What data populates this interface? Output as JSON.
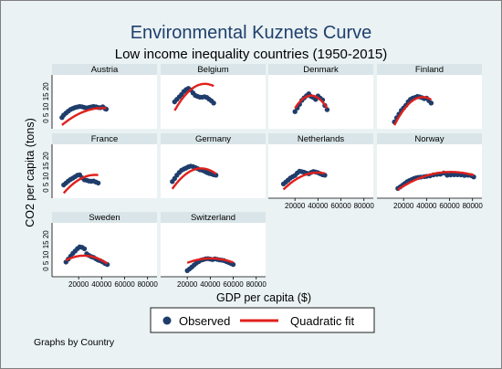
{
  "chart_data": {
    "type": "scatter",
    "title": "Environmental Kuznets Curve",
    "subtitle": "Low income inequality countries (1950-2015)",
    "xlabel": "GDP per capita ($)",
    "ylabel": "CO2 per capita (tons)",
    "note": "Graphs by Country",
    "xlim": [
      0,
      85000
    ],
    "ylim": [
      0,
      22
    ],
    "x_ticks": [
      20000,
      40000,
      60000,
      80000
    ],
    "x_tick_labels": [
      "20000",
      "40000",
      "60000",
      "80000"
    ],
    "y_ticks": [
      5,
      10,
      15,
      20
    ],
    "y_tick_labels": [
      "5",
      "10",
      "15",
      "20"
    ],
    "y_tick_text": "0 5 10 15 20",
    "legend": {
      "placement": "bottom",
      "items": [
        "Observed",
        "Quadratic fit"
      ]
    },
    "colors": {
      "observed": "#1f3d6b",
      "fit": "#e0201c",
      "title": "#1f3f6e",
      "background": "#eaf2f3"
    },
    "panels": [
      {
        "name": "Austria",
        "fit": [
          -5.53e-09,
          0.000453,
          -0.8
        ],
        "observed": [
          [
            5500,
            4.6
          ],
          [
            7000,
            5.6
          ],
          [
            9000,
            6.4
          ],
          [
            11000,
            7.2
          ],
          [
            13000,
            7.9
          ],
          [
            15000,
            8.3
          ],
          [
            17000,
            8.7
          ],
          [
            19000,
            8.9
          ],
          [
            21000,
            9.1
          ],
          [
            23000,
            9.0
          ],
          [
            25000,
            8.7
          ],
          [
            27000,
            8.5
          ],
          [
            29000,
            8.7
          ],
          [
            31000,
            8.9
          ],
          [
            33000,
            9.1
          ],
          [
            35000,
            9.0
          ],
          [
            37000,
            8.7
          ],
          [
            39000,
            8.6
          ],
          [
            41000,
            9.0
          ],
          [
            43000,
            8.2
          ],
          [
            44000,
            8.0
          ]
        ]
      },
      {
        "name": "Belgium",
        "fit": [
          -1.57e-08,
          0.00111,
          -1.27
        ],
        "observed": [
          [
            9000,
            11.0
          ],
          [
            11000,
            12.0
          ],
          [
            13000,
            13.0
          ],
          [
            15000,
            14.0
          ],
          [
            17000,
            15.2
          ],
          [
            19000,
            16.0
          ],
          [
            21000,
            16.5
          ],
          [
            23000,
            15.8
          ],
          [
            25000,
            14.6
          ],
          [
            27000,
            13.6
          ],
          [
            29000,
            13.2
          ],
          [
            31000,
            12.9
          ],
          [
            33000,
            12.9
          ],
          [
            35000,
            13.1
          ],
          [
            37000,
            12.8
          ],
          [
            39000,
            12.1
          ],
          [
            41000,
            11.4
          ],
          [
            43000,
            10.5
          ]
        ]
      },
      {
        "name": "Denmark",
        "fit": [
          -2.63e-08,
          0.00179,
          -16.9
        ],
        "observed": [
          [
            20000,
            7.0
          ],
          [
            22000,
            8.5
          ],
          [
            24000,
            10.0
          ],
          [
            26000,
            11.6
          ],
          [
            28000,
            12.6
          ],
          [
            30000,
            13.5
          ],
          [
            32000,
            14.3
          ],
          [
            34000,
            13.2
          ],
          [
            36000,
            12.8
          ],
          [
            38000,
            12.0
          ],
          [
            40000,
            13.4
          ],
          [
            42000,
            12.5
          ],
          [
            44000,
            11.8
          ],
          [
            46000,
            9.5
          ],
          [
            48000,
            7.8
          ]
        ]
      },
      {
        "name": "Finland",
        "fit": [
          -1.9e-08,
          0.00139,
          -12.5
        ],
        "observed": [
          [
            12000,
            2.8
          ],
          [
            14000,
            4.5
          ],
          [
            16000,
            6.0
          ],
          [
            18000,
            7.5
          ],
          [
            20000,
            8.5
          ],
          [
            22000,
            9.6
          ],
          [
            24000,
            11.0
          ],
          [
            26000,
            12.0
          ],
          [
            28000,
            12.5
          ],
          [
            30000,
            12.8
          ],
          [
            32000,
            13.2
          ],
          [
            34000,
            13.0
          ],
          [
            36000,
            12.7
          ],
          [
            38000,
            12.3
          ],
          [
            40000,
            12.5
          ],
          [
            42000,
            11.5
          ],
          [
            44000,
            10.5
          ]
        ]
      },
      {
        "name": "France",
        "fit": [
          -9.9e-09,
          0.000681,
          -2.2
        ],
        "observed": [
          [
            7000,
            5.4
          ],
          [
            9000,
            6.2
          ],
          [
            11000,
            7.0
          ],
          [
            13000,
            7.7
          ],
          [
            15000,
            8.2
          ],
          [
            17000,
            8.8
          ],
          [
            19000,
            9.4
          ],
          [
            21000,
            9.5
          ],
          [
            23000,
            8.3
          ],
          [
            25000,
            7.5
          ],
          [
            27000,
            7.3
          ],
          [
            29000,
            7.0
          ],
          [
            31000,
            6.9
          ],
          [
            33000,
            7.0
          ],
          [
            35000,
            6.6
          ],
          [
            37000,
            6.2
          ]
        ]
      },
      {
        "name": "Germany",
        "fit": [
          -1.33e-08,
          0.000853,
          -1.5
        ],
        "observed": [
          [
            7000,
            6.8
          ],
          [
            9000,
            8.0
          ],
          [
            11000,
            9.4
          ],
          [
            13000,
            10.5
          ],
          [
            15000,
            11.4
          ],
          [
            17000,
            11.9
          ],
          [
            19000,
            12.3
          ],
          [
            21000,
            12.8
          ],
          [
            23000,
            13.1
          ],
          [
            25000,
            12.9
          ],
          [
            27000,
            12.5
          ],
          [
            29000,
            12.1
          ],
          [
            31000,
            11.6
          ],
          [
            33000,
            11.4
          ],
          [
            35000,
            11.0
          ],
          [
            37000,
            10.5
          ],
          [
            39000,
            10.1
          ],
          [
            41000,
            9.9
          ],
          [
            43000,
            9.6
          ],
          [
            45000,
            9.4
          ]
        ]
      },
      {
        "name": "Netherlands",
        "fit": [
          -7.9e-09,
          0.000624,
          -1.9
        ],
        "observed": [
          [
            10000,
            5.8
          ],
          [
            12000,
            6.6
          ],
          [
            14000,
            7.4
          ],
          [
            16000,
            8.2
          ],
          [
            18000,
            8.8
          ],
          [
            20000,
            9.3
          ],
          [
            22000,
            10.3
          ],
          [
            24000,
            11.0
          ],
          [
            26000,
            10.8
          ],
          [
            28000,
            10.6
          ],
          [
            30000,
            10.2
          ],
          [
            32000,
            10.0
          ],
          [
            34000,
            10.5
          ],
          [
            36000,
            10.9
          ],
          [
            38000,
            10.7
          ],
          [
            40000,
            10.4
          ],
          [
            42000,
            10.0
          ],
          [
            44000,
            9.6
          ],
          [
            46000,
            9.4
          ]
        ]
      },
      {
        "name": "Norway",
        "fit": [
          -3.4e-09,
          0.000416,
          -2.0
        ],
        "observed": [
          [
            15000,
            4.0
          ],
          [
            17000,
            4.6
          ],
          [
            19000,
            5.3
          ],
          [
            21000,
            6.0
          ],
          [
            23000,
            6.7
          ],
          [
            25000,
            7.2
          ],
          [
            27000,
            7.6
          ],
          [
            29000,
            8.0
          ],
          [
            31000,
            8.3
          ],
          [
            33000,
            8.5
          ],
          [
            35000,
            8.6
          ],
          [
            38000,
            8.8
          ],
          [
            40000,
            8.9
          ],
          [
            43000,
            9.1
          ],
          [
            46000,
            9.5
          ],
          [
            49000,
            9.7
          ],
          [
            52000,
            9.8
          ],
          [
            55000,
            10.3
          ],
          [
            58000,
            9.4
          ],
          [
            61000,
            9.5
          ],
          [
            64000,
            9.6
          ],
          [
            67000,
            9.6
          ],
          [
            70000,
            9.5
          ],
          [
            73000,
            9.3
          ],
          [
            76000,
            9.4
          ],
          [
            79000,
            9.2
          ],
          [
            81000,
            8.7
          ]
        ]
      },
      {
        "name": "Sweden",
        "fit": [
          -7.8e-09,
          0.000383,
          3.9
        ],
        "observed": [
          [
            9000,
            6.0
          ],
          [
            11000,
            7.2
          ],
          [
            13000,
            8.4
          ],
          [
            15000,
            9.6
          ],
          [
            17000,
            10.5
          ],
          [
            19000,
            11.5
          ],
          [
            21000,
            12.2
          ],
          [
            23000,
            12.0
          ],
          [
            25000,
            11.4
          ],
          [
            27000,
            9.4
          ],
          [
            29000,
            8.7
          ],
          [
            31000,
            8.2
          ],
          [
            33000,
            7.9
          ],
          [
            35000,
            7.3
          ],
          [
            37000,
            6.8
          ],
          [
            39000,
            6.5
          ],
          [
            41000,
            6.0
          ],
          [
            43000,
            5.4
          ],
          [
            45000,
            5.0
          ]
        ]
      },
      {
        "name": "Switzerland",
        "fit": [
          -4.4e-09,
          0.000356,
          0.3
        ],
        "observed": [
          [
            20000,
            2.5
          ],
          [
            22000,
            3.2
          ],
          [
            24000,
            4.0
          ],
          [
            26000,
            4.8
          ],
          [
            28000,
            5.6
          ],
          [
            30000,
            6.2
          ],
          [
            32000,
            6.8
          ],
          [
            34000,
            7.0
          ],
          [
            36000,
            7.3
          ],
          [
            38000,
            7.4
          ],
          [
            40000,
            7.2
          ],
          [
            42000,
            7.0
          ],
          [
            44000,
            7.3
          ],
          [
            46000,
            7.1
          ],
          [
            48000,
            6.9
          ],
          [
            50000,
            6.8
          ],
          [
            52000,
            6.6
          ],
          [
            54000,
            6.2
          ],
          [
            56000,
            5.8
          ],
          [
            58000,
            5.4
          ],
          [
            60000,
            5.0
          ]
        ]
      }
    ]
  }
}
